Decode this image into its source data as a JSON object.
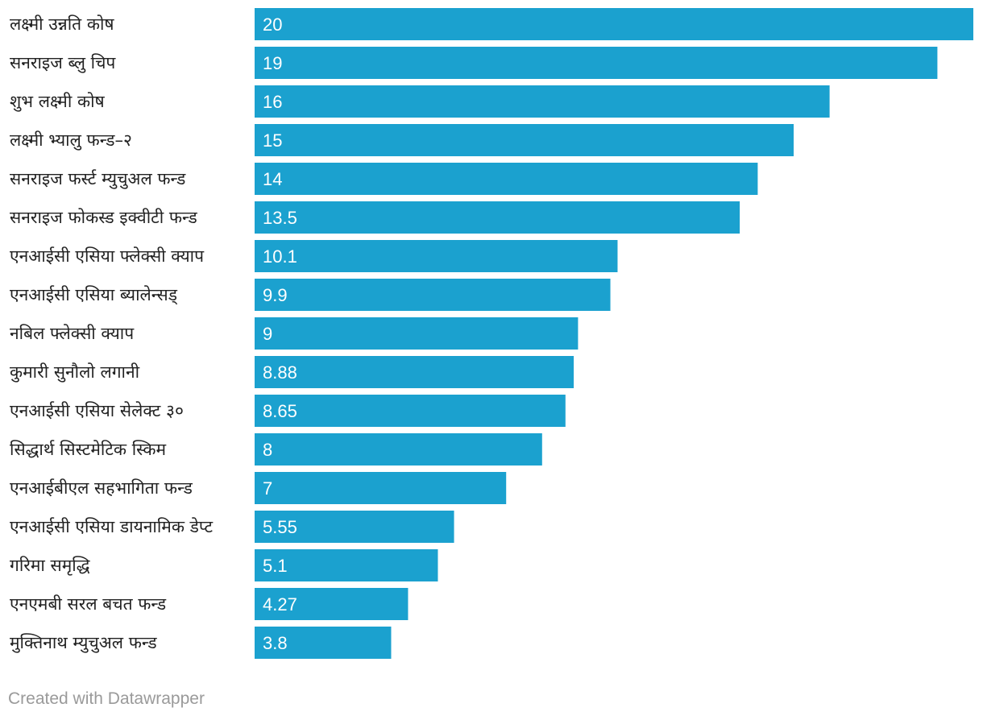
{
  "chart_data": {
    "type": "bar",
    "orientation": "horizontal",
    "categories": [
      "लक्ष्मी उन्नति कोष",
      "सनराइज ब्लु चिप",
      "शुभ लक्ष्मी कोष",
      "लक्ष्मी भ्यालु फन्ड–२",
      "सनराइज फर्स्ट म्युचुअल फन्ड",
      "सनराइज फोकस्ड इक्वीटी फन्ड",
      "एनआईसी एसिया फ्लेक्सी क्याप",
      "एनआईसी एसिया ब्यालेन्सड्",
      "नबिल फ्लेक्सी क्याप",
      "कुमारी सुनौलो लगानी",
      "एनआईसी एसिया सेलेक्ट ३०",
      "सिद्धार्थ सिस्टमेटिक स्किम",
      "एनआईबीएल सहभागिता फन्ड",
      "एनआईसी एसिया डायनामिक डेप्ट",
      "गरिमा समृद्धि",
      "एनएमबी सरल बचत फन्ड",
      "मुक्तिनाथ म्युचुअल फन्ड"
    ],
    "values": [
      20,
      19,
      16,
      15,
      14,
      13.5,
      10.1,
      9.9,
      9,
      8.88,
      8.65,
      8,
      7,
      5.55,
      5.1,
      4.27,
      3.8
    ],
    "value_labels": [
      "20",
      "19",
      "16",
      "15",
      "14",
      "13.5",
      "10.1",
      "9.9",
      "9",
      "8.88",
      "8.65",
      "8",
      "7",
      "5.55",
      "5.1",
      "4.27",
      "3.8"
    ],
    "xlim": [
      0,
      20
    ],
    "grid": false,
    "bar_color": "#1ba1cf",
    "value_label_color": "#ffffff"
  },
  "footer": {
    "credit": "Created with Datawrapper"
  }
}
